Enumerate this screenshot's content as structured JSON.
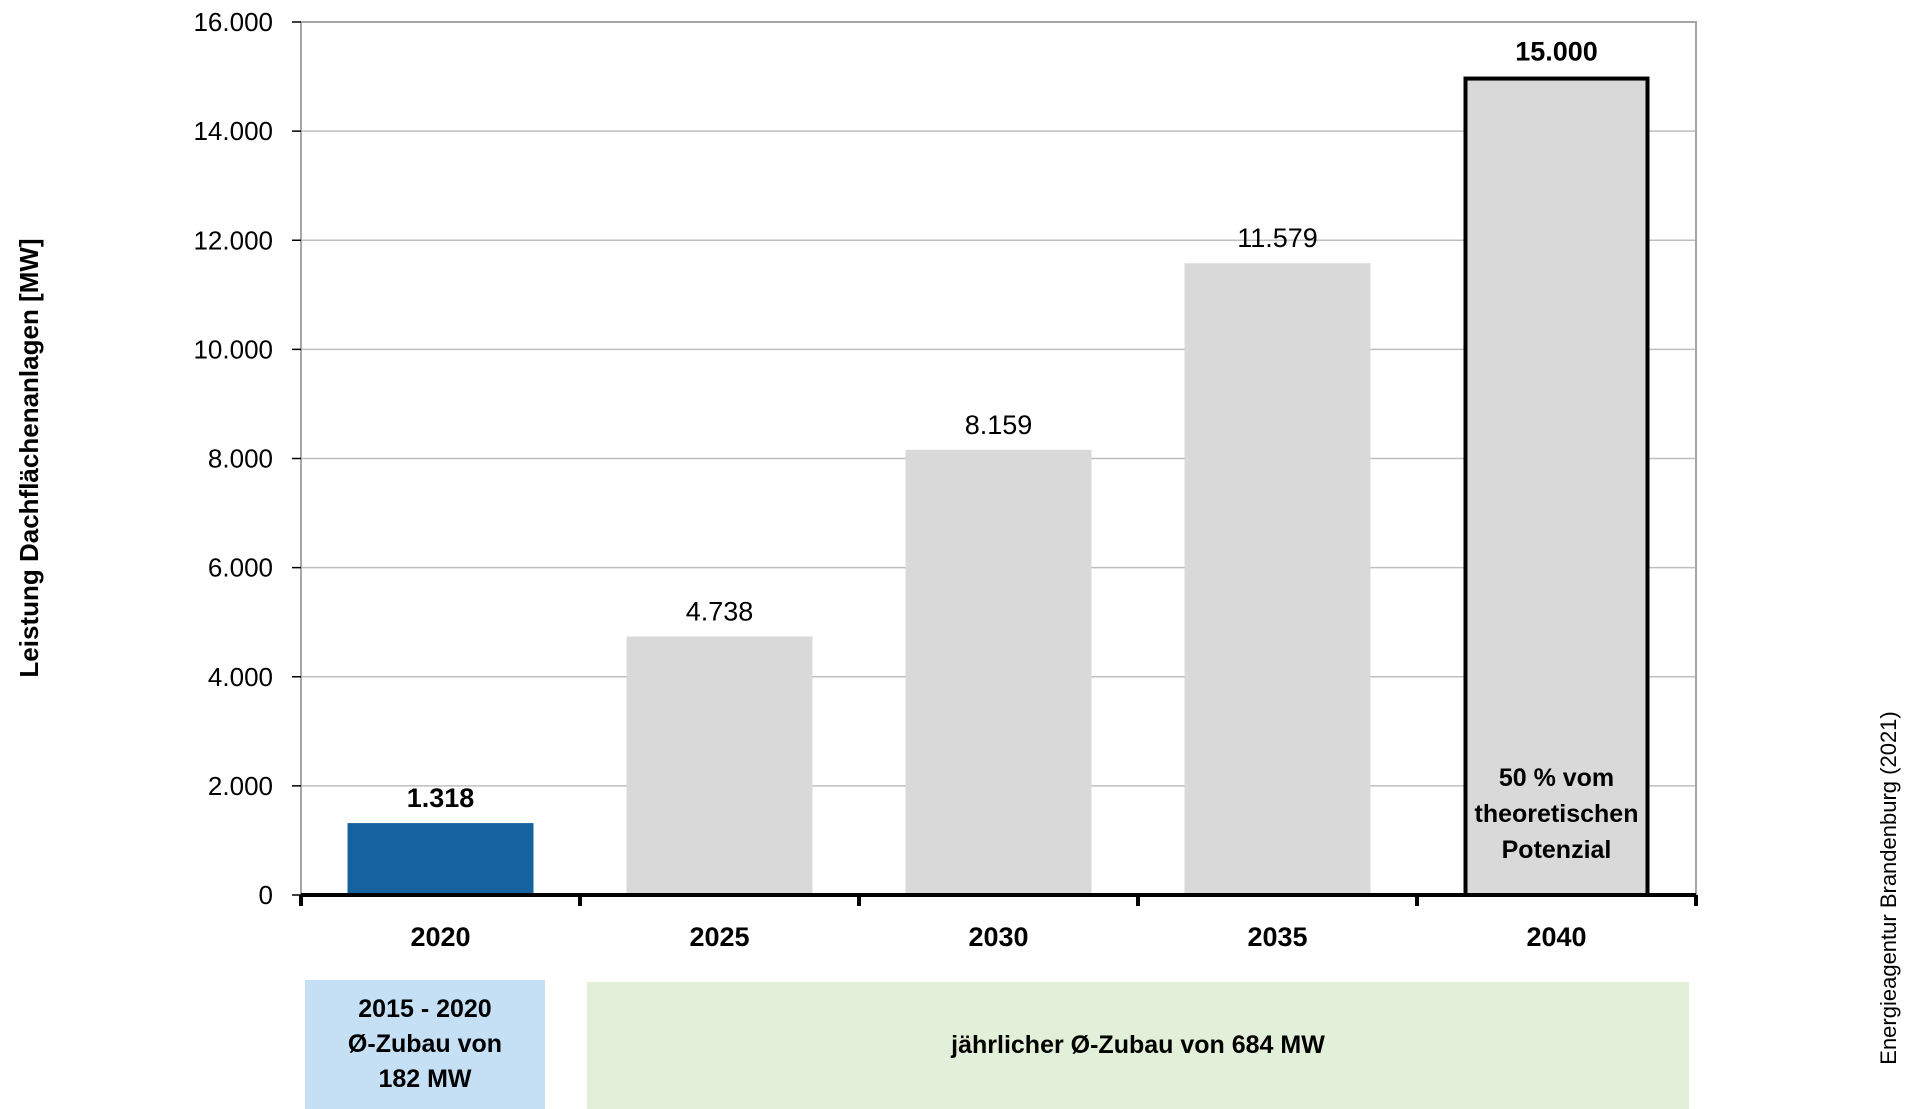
{
  "chart_data": {
    "type": "bar",
    "categories": [
      "2020",
      "2025",
      "2030",
      "2035",
      "2040"
    ],
    "values": [
      1318,
      4738,
      8159,
      11579,
      15000
    ],
    "value_labels": [
      "1.318",
      "4.738",
      "8.159",
      "11.579",
      "15.000"
    ],
    "bold_labels": [
      true,
      false,
      false,
      false,
      true
    ],
    "bar_colors": [
      "#14639e",
      "#d9d9d9",
      "#d9d9d9",
      "#d9d9d9",
      "#d9d9d9"
    ],
    "outlined_bar_index": 4,
    "ylabel": "Leistung Dachflächenanlagen  [MW]",
    "ylim": [
      0,
      16000
    ],
    "yticks": [
      0,
      2000,
      4000,
      6000,
      8000,
      10000,
      12000,
      14000,
      16000
    ],
    "ytick_labels": [
      "0",
      "2.000",
      "4.000",
      "6.000",
      "8.000",
      "10.000",
      "12.000",
      "14.000",
      "16.000"
    ],
    "grid": true,
    "inner_annotation": [
      "50 % vom",
      "theoretischen",
      "Potenzial"
    ],
    "source": "Energieagentur Brandenburg (2021)",
    "period_boxes": [
      {
        "lines": [
          "2015 - 2020",
          "Ø-Zubau von",
          "182 MW"
        ],
        "color": "#c5e0f4"
      },
      {
        "lines": [
          "jährlicher Ø-Zubau von 684 MW"
        ],
        "color": "#e2efd9"
      }
    ]
  }
}
